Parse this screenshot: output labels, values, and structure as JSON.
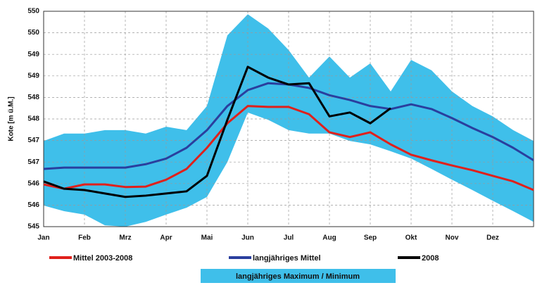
{
  "chart_data": {
    "type": "line",
    "y_label": "Kote [m ü.M.]",
    "x": [
      0,
      0.5,
      1,
      1.5,
      2,
      2.5,
      3,
      3.5,
      4,
      4.5,
      5,
      5.5,
      6,
      6.5,
      7,
      7.5,
      8,
      8.5,
      9,
      9.5,
      10,
      10.5,
      11,
      11.5,
      12
    ],
    "xlim": [
      0,
      12
    ],
    "xticks": [
      {
        "value": 0,
        "label": "Jan"
      },
      {
        "value": 1,
        "label": "Feb"
      },
      {
        "value": 2,
        "label": "Mrz"
      },
      {
        "value": 3,
        "label": "Apr"
      },
      {
        "value": 4,
        "label": "Mai"
      },
      {
        "value": 5,
        "label": "Jun"
      },
      {
        "value": 6,
        "label": "Jul"
      },
      {
        "value": 7,
        "label": "Aug"
      },
      {
        "value": 8,
        "label": "Sep"
      },
      {
        "value": 9,
        "label": "Okt"
      },
      {
        "value": 10,
        "label": "Nov"
      },
      {
        "value": 11,
        "label": "Dez"
      }
    ],
    "ylim": [
      545,
      550
    ],
    "yticks": [
      545,
      {
        "value": 545.5,
        "label": "546"
      },
      546,
      {
        "value": 546.5,
        "label": "547"
      },
      547,
      {
        "value": 547.5,
        "label": "548"
      },
      548,
      {
        "value": 548.5,
        "label": "549"
      },
      549,
      {
        "value": 549.5,
        "label": "550"
      },
      550
    ],
    "grid": true,
    "band": {
      "name": "langjähriges Maximum / Minimum",
      "color": "#3fbfea",
      "upper": [
        546.99,
        547.16,
        547.16,
        547.24,
        547.24,
        547.16,
        547.32,
        547.24,
        547.8,
        549.44,
        549.93,
        549.6,
        549.1,
        548.46,
        548.95,
        548.46,
        548.79,
        548.14,
        548.87,
        548.63,
        548.14,
        547.8,
        547.56,
        547.24,
        546.99
      ],
      "lower": [
        545.49,
        545.36,
        545.28,
        545.03,
        545.0,
        545.11,
        545.28,
        545.44,
        545.69,
        546.5,
        547.65,
        547.48,
        547.24,
        547.16,
        547.16,
        546.99,
        546.91,
        546.75,
        546.58,
        546.34,
        546.09,
        545.85,
        545.6,
        545.36,
        545.11
      ]
    },
    "series": [
      {
        "name": "Mittel 2003-2008",
        "color": "#e0201b",
        "values": [
          545.98,
          545.88,
          545.98,
          545.98,
          545.92,
          545.93,
          546.09,
          546.34,
          546.83,
          547.4,
          547.8,
          547.78,
          547.78,
          547.61,
          547.19,
          547.08,
          547.19,
          546.91,
          546.67,
          546.54,
          546.42,
          546.31,
          546.18,
          546.05,
          545.85
        ]
      },
      {
        "name": "langjähriges Mittel",
        "color": "#2a3f9e",
        "values": [
          546.34,
          546.37,
          546.37,
          546.37,
          546.37,
          546.45,
          546.58,
          546.83,
          547.24,
          547.8,
          548.17,
          548.33,
          548.3,
          548.22,
          548.05,
          547.94,
          547.8,
          547.73,
          547.84,
          547.73,
          547.52,
          547.29,
          547.08,
          546.83,
          546.54
        ]
      },
      {
        "name": "2008",
        "color": "#000000",
        "values": [
          546.05,
          545.88,
          545.85,
          545.77,
          545.69,
          545.72,
          545.77,
          545.82,
          546.18,
          547.48,
          548.71,
          548.46,
          548.3,
          548.33,
          547.56,
          547.65,
          547.4,
          547.75,
          null,
          null,
          null,
          null,
          null,
          null,
          null
        ]
      }
    ]
  }
}
